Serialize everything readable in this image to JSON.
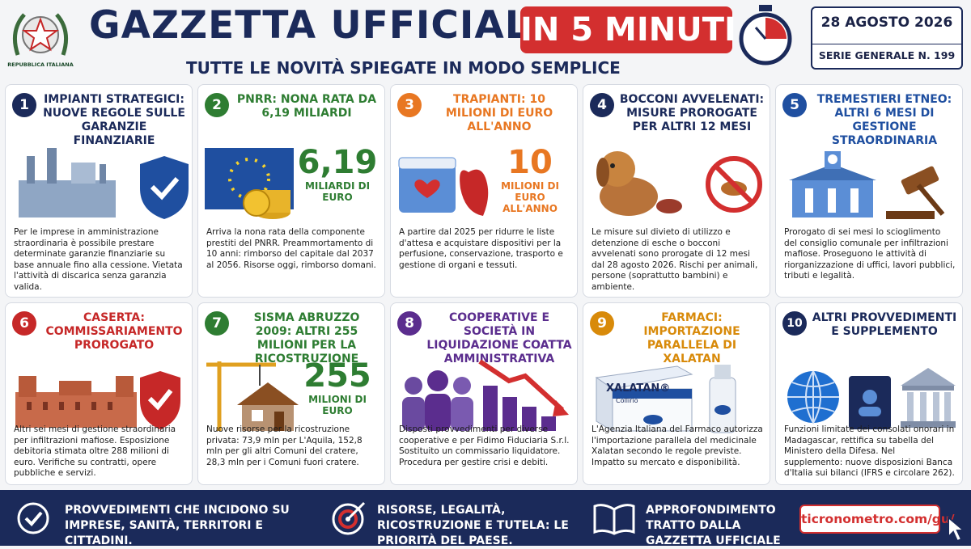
{
  "header": {
    "emblem": "REPUBBLICA ITALIANA",
    "title": "GAZZETTA UFFICIALE",
    "badge": "IN 5 MINUTI",
    "subtitle": "TUTTE LE NOVITÀ SPIEGATE IN MODO SEMPLICE",
    "date": "28 AGOSTO 2026",
    "series": "SERIE GENERALE N. 199"
  },
  "cards": [
    {
      "number": "1",
      "title": "IMPIANTI STRATEGICI: NUOVE REGOLE SULLE GARANZIE FINANZIARIE",
      "body": "Per le imprese in amministrazione straordinaria è possibile prestare determinate garanzie finanziarie su base annuale fino alla cessione. Vietata l'attività di discarica senza garanzia valida."
    },
    {
      "number": "2",
      "title": "PNRR: NONA RATA DA 6,19 MILIARDI",
      "big": "6,19",
      "big_label": "MILIARDI DI EURO",
      "body": "Arriva la nona rata della componente prestiti del PNRR. Preammortamento di 10 anni: rimborso del capitale dal 2037 al 2056. Risorse oggi, rimborso domani."
    },
    {
      "number": "3",
      "title": "TRAPIANTI: 10 MILIONI DI EURO ALL'ANNO",
      "big": "10",
      "big_label": "MILIONI DI EURO ALL'ANNO",
      "body": "A partire dal 2025 per ridurre le liste d'attesa e acquistare dispositivi per la perfusione, conservazione, trasporto e gestione di organi e tessuti."
    },
    {
      "number": "4",
      "title": "BOCCONI AVVELENATI: MISURE PROROGATE PER ALTRI 12 MESI",
      "body": "Le misure sul divieto di utilizzo e detenzione di esche o bocconi avvelenati sono prorogate di 12 mesi dal 28 agosto 2026. Rischi per animali, persone (soprattutto bambini) e ambiente."
    },
    {
      "number": "5",
      "title": "TREMESTIERI ETNEO: ALTRI 6 MESI DI GESTIONE STRAORDINARIA",
      "body": "Prorogato di sei mesi lo scioglimento del consiglio comunale per infiltrazioni mafiose. Proseguono le attività di riorganizzazione di uffici, lavori pubblici, tributi e legalità."
    },
    {
      "number": "6",
      "title": "CASERTA: COMMISSARIAMENTO PROROGATO",
      "body": "Altri sei mesi di gestione straordinaria per infiltrazioni mafiose. Esposizione debitoria stimata oltre 288 milioni di euro. Verifiche su contratti, opere pubbliche e servizi."
    },
    {
      "number": "7",
      "title": "SISMA ABRUZZO 2009: ALTRI 255 MILIONI PER LA RICOSTRUZIONE",
      "big": "255",
      "big_label": "MILIONI DI EURO",
      "body": "Nuove risorse per la ricostruzione privata: 73,9 mln per L'Aquila, 152,8 mln per gli altri Comuni del cratere, 28,3 mln per i Comuni fuori cratere."
    },
    {
      "number": "8",
      "title": "COOPERATIVE E SOCIETÀ IN LIQUIDAZIONE COATTA AMMINISTRATIVA",
      "body": "Disposti provvedimenti per diverse cooperative e per Fidimo Fiduciaria S.r.l. Sostituito un commissario liquidatore. Procedura per gestire crisi e debiti."
    },
    {
      "number": "9",
      "title": "FARMACI: IMPORTAZIONE PARALLELA DI XALATAN",
      "box_name": "XALATAN®",
      "box_sub": "Collirio",
      "body": "L'Agenzia Italiana del Farmaco autorizza l'importazione parallela del medicinale Xalatan secondo le regole previste. Impatto su mercato e disponibilità."
    },
    {
      "number": "10",
      "title": "ALTRI PROVVEDIMENTI E SUPPLEMENTO",
      "body": "Funzioni limitate dei consolati onorari in Madagascar, rettifica su tabella del Ministero della Difesa. Nel supplemento: nuove disposizioni Banca d'Italia sui bilanci (IFRS e circolare 262)."
    }
  ],
  "footer": {
    "items": [
      "PROVVEDIMENTI CHE INCIDONO SU IMPRESE, SANITÀ, TERRITORI E CITTADINI.",
      "RISORSE, LEGALITÀ, RICOSTRUZIONE E TUTELA: LE PRIORITÀ DEL PAESE.",
      "APPROFONDIMENTO TRATTO DALLA GAZZETTA UFFICIALE"
    ],
    "url": "ticronometro.com/gu/"
  }
}
